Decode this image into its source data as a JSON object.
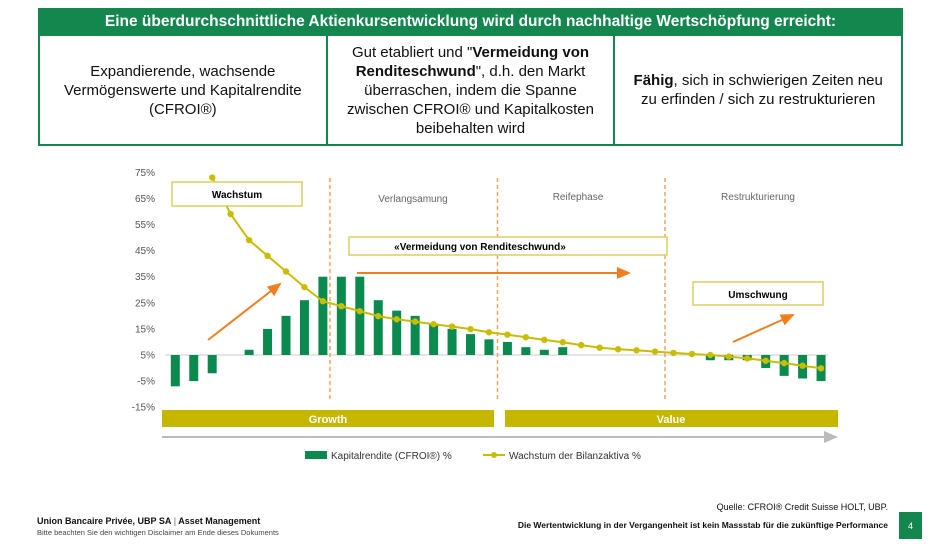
{
  "header": {
    "title": "Eine überdurchschnittliche Aktienkursentwicklung wird durch nachhaltige Wertschöpfung erreicht:"
  },
  "columns": [
    {
      "pre": "Expandierende, wachsende Vermögenswerte und Kapitalrendite (CFROI®)",
      "bold": "",
      "post": ""
    },
    {
      "pre": "Gut etabliert und \"",
      "bold": "Vermeidung von Renditeschwund",
      "post": "\", d.h. den Markt überraschen, indem die Spanne zwischen CFROI® und Kapitalkosten beibehalten wird"
    },
    {
      "pre": "",
      "bold": "Fähig",
      "post": ", sich in schwierigen Zeiten neu zu erfinden / sich zu restrukturieren"
    }
  ],
  "chart_data": {
    "type": "bar+line",
    "yticks": [
      "75%",
      "65%",
      "55%",
      "45%",
      "35%",
      "25%",
      "15%",
      "5%",
      "-5%",
      "-15%"
    ],
    "ylim": [
      -15,
      75
    ],
    "baseline": 5,
    "colors": {
      "bars": "#0b8a4f",
      "line": "#c8bd00",
      "arrows": "#f07f1e",
      "phase_band": "#c5b700"
    },
    "series": [
      {
        "name": "Kapitalrendite (CFROI®) %",
        "type": "bar",
        "values": [
          -7,
          -5,
          -2,
          5,
          7,
          15,
          20,
          26,
          35,
          35,
          35,
          26,
          22,
          20,
          17,
          15,
          13,
          11,
          10,
          8,
          7,
          8,
          5,
          5,
          5,
          5,
          5,
          5,
          5,
          3,
          3,
          3,
          0,
          -3,
          -4,
          -5
        ]
      },
      {
        "name": "Wachstum der Bilanzaktiva %",
        "type": "line",
        "values": [
          null,
          null,
          73,
          59,
          49,
          43,
          37,
          31,
          25.6,
          23.7,
          21.8,
          19.9,
          18.7,
          17.8,
          16.8,
          15.9,
          14.9,
          13.7,
          12.8,
          11.8,
          10.8,
          9.9,
          8.8,
          7.8,
          7.2,
          6.8,
          6.3,
          5.8,
          5.4,
          5,
          4.4,
          3.7,
          2.8,
          1.9,
          0.9,
          -0.1
        ]
      }
    ],
    "phases": [
      "Verlangsamung",
      "Reifephase",
      "Restrukturierung"
    ],
    "annotations": {
      "wachstum": "Wachstum",
      "vermeidung": "«Vermeidung von Renditeschwund»",
      "umschwung": "Umschwung"
    },
    "bands": [
      "Growth",
      "Value"
    ]
  },
  "footer": {
    "company": "Union Bancaire Privée, UBP SA",
    "division": "Asset Management",
    "disclaimer": "Bitte beachten Sie den wichtigen Disclaimer am Ende dieses Dokuments",
    "source": "Quelle: CFROI® Credit Suisse HOLT, UBP.",
    "performance": "Die  Wertentwicklung in der Vergangenheit ist kein Massstab für die zukünftige Performance",
    "page": "4"
  }
}
